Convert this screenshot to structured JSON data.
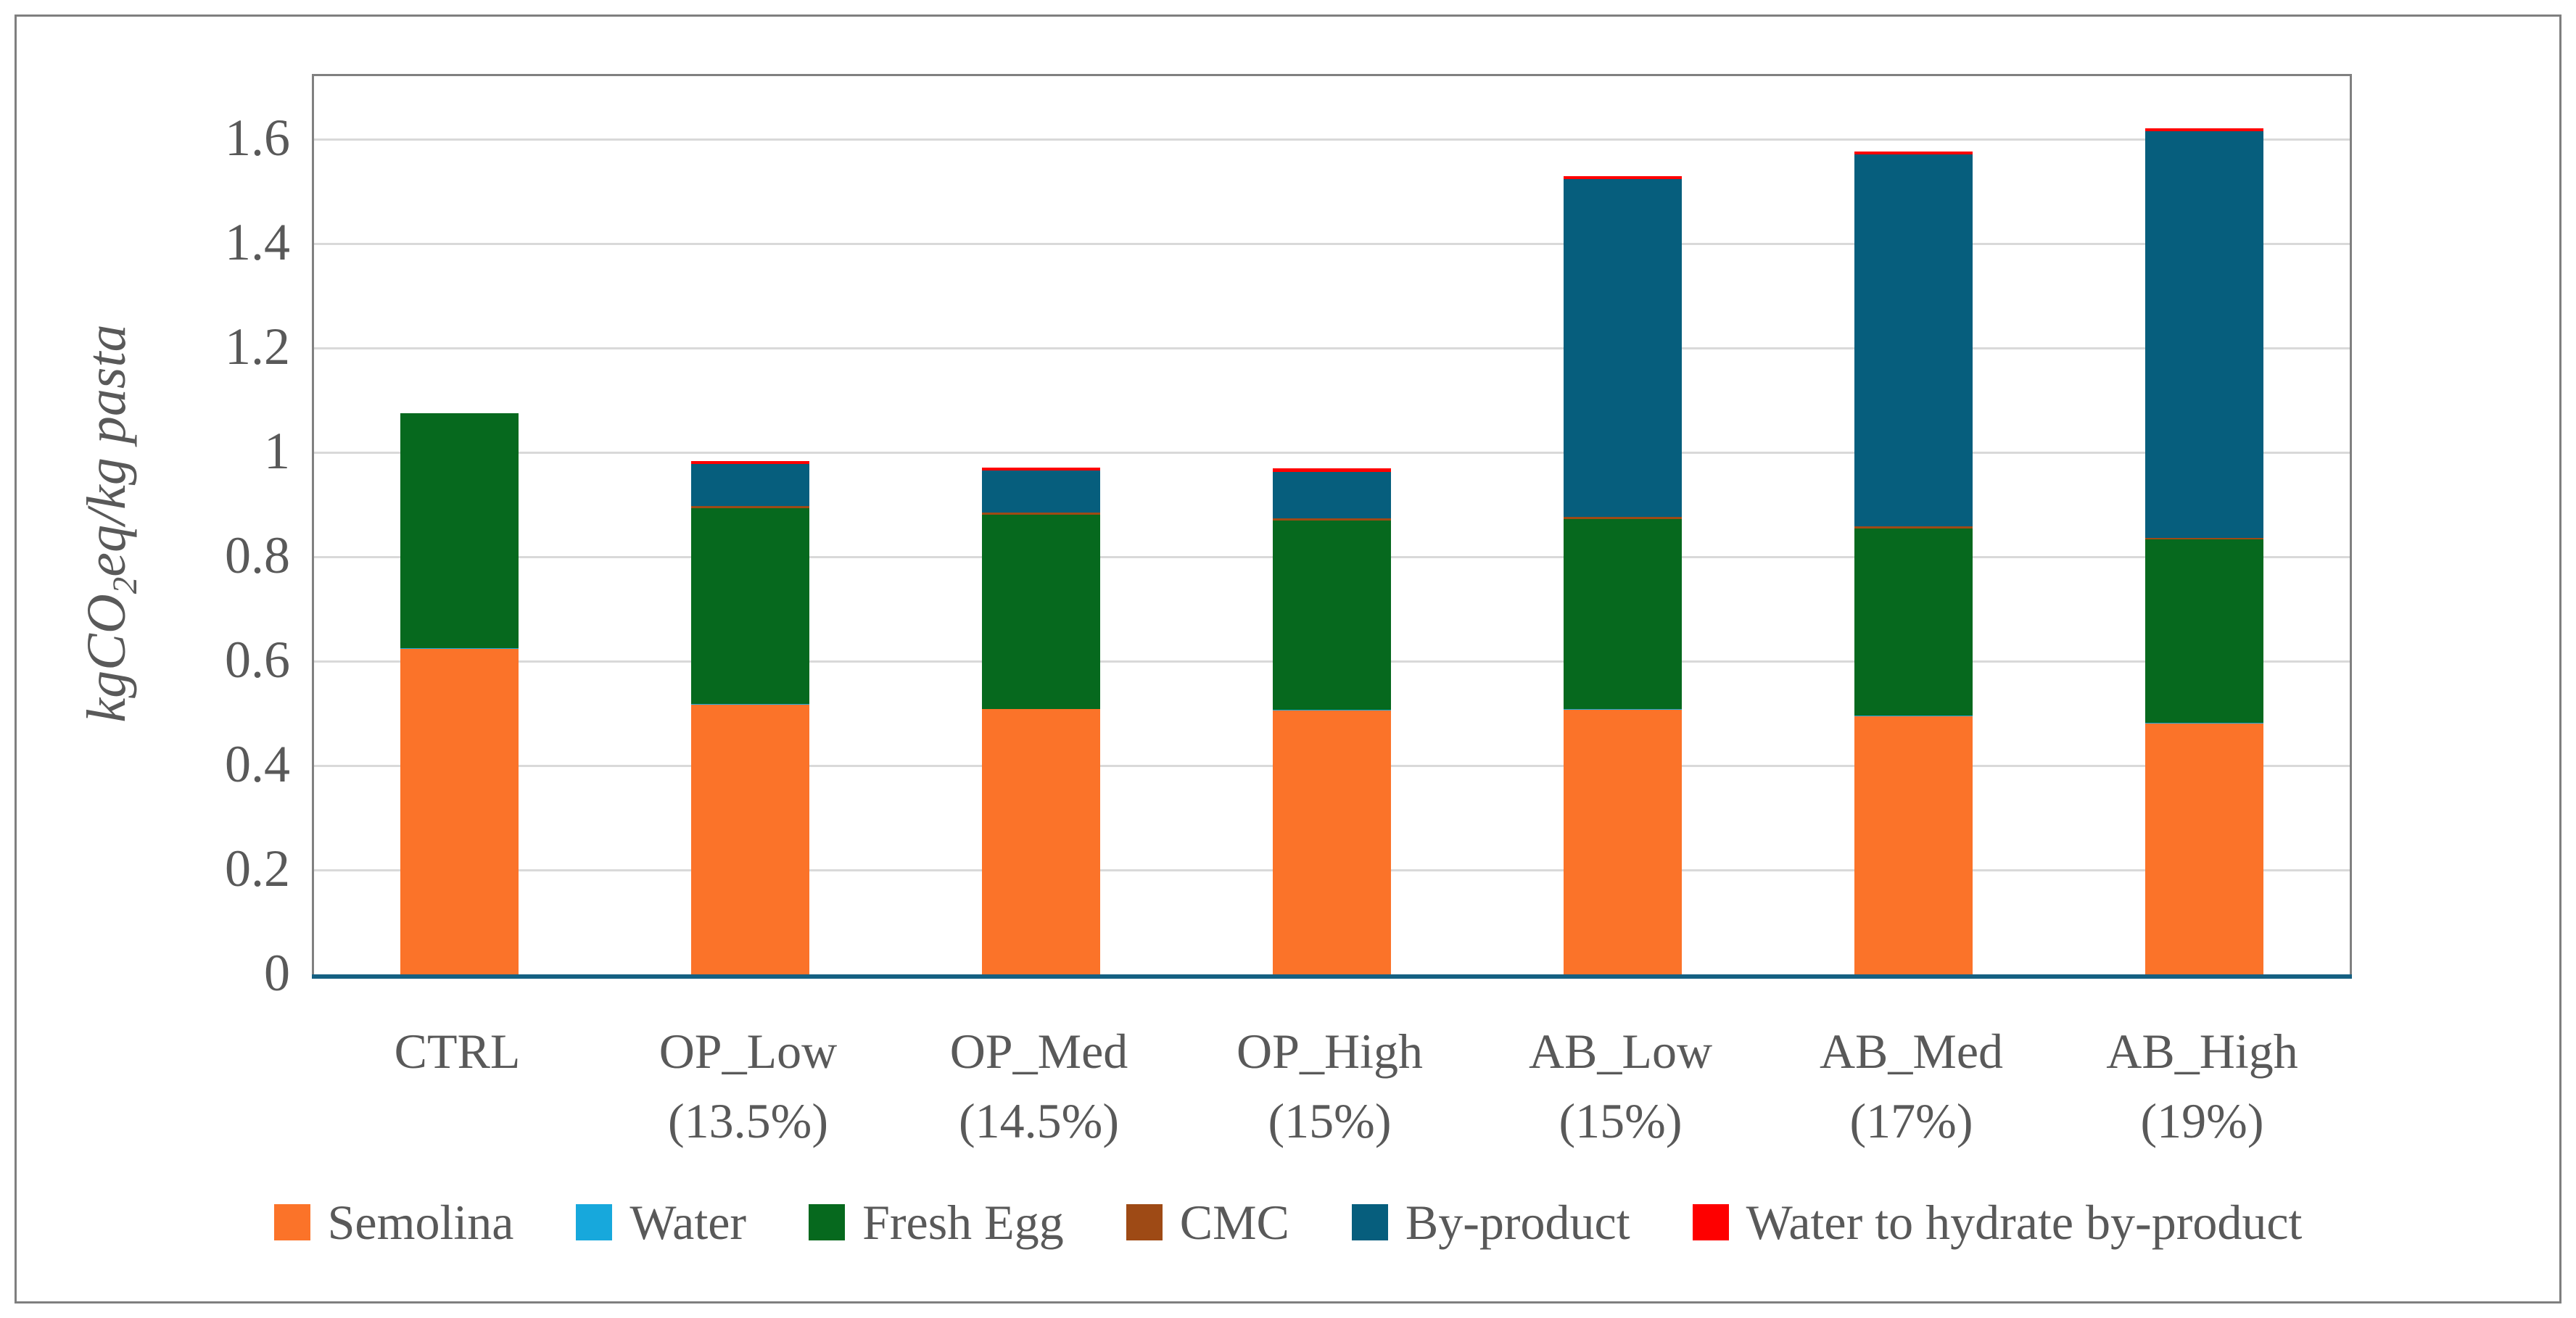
{
  "figure": {
    "background_color": "#ffffff",
    "border_color": "#7f7f7f"
  },
  "chart_data": {
    "type": "bar",
    "stacked": true,
    "title": "",
    "xlabel": "",
    "ylabel": "kgCO2eq/kg pasta",
    "ylabel_parts": {
      "pre": "kgCO",
      "sub": "2",
      "post": "eq/kg pasta"
    },
    "ylim": [
      0,
      1.722
    ],
    "y_ticks": [
      0,
      0.2,
      0.4,
      0.6,
      0.8,
      1.0,
      1.2,
      1.4,
      1.6
    ],
    "y_tick_labels": [
      "0",
      "0.2",
      "0.4",
      "0.6",
      "0.8",
      "1",
      "1.2",
      "1.4",
      "1.6"
    ],
    "grid": true,
    "legend_position": "bottom",
    "categories": [
      {
        "label": "CTRL",
        "sublabel": ""
      },
      {
        "label": "OP_Low",
        "sublabel": "(13.5%)"
      },
      {
        "label": "OP_Med",
        "sublabel": "(14.5%)"
      },
      {
        "label": "OP_High",
        "sublabel": "(15%)"
      },
      {
        "label": "AB_Low",
        "sublabel": "(15%)"
      },
      {
        "label": "AB_Med",
        "sublabel": "(17%)"
      },
      {
        "label": "AB_High",
        "sublabel": "(19%)"
      }
    ],
    "series": [
      {
        "name": "Semolina",
        "color": "#fb7329",
        "values": [
          0.625,
          0.518,
          0.509,
          0.507,
          0.508,
          0.496,
          0.482
        ]
      },
      {
        "name": "Water",
        "color": "#17a8dc",
        "values": [
          0.001,
          0.001,
          0.001,
          0.001,
          0.001,
          0.001,
          0.001
        ]
      },
      {
        "name": "Fresh Egg",
        "color": "#06691e",
        "values": [
          0.45,
          0.376,
          0.372,
          0.363,
          0.365,
          0.358,
          0.351
        ]
      },
      {
        "name": "CMC",
        "color": "#9e4a15",
        "values": [
          0,
          0.004,
          0.004,
          0.004,
          0.004,
          0.005,
          0.004
        ]
      },
      {
        "name": "By-product",
        "color": "#065e7d",
        "values": [
          0,
          0.08,
          0.08,
          0.089,
          0.647,
          0.712,
          0.778
        ]
      },
      {
        "name": "Water to hydrate by-product",
        "color": "#fe0000",
        "values": [
          0,
          0.006,
          0.006,
          0.007,
          0.006,
          0.006,
          0.006
        ]
      }
    ],
    "approx_totals": [
      1.075,
      0.985,
      0.972,
      0.971,
      1.531,
      1.578,
      1.622
    ],
    "style": {
      "axis_line_color": "#156082",
      "gridline_color": "#d9d9d9",
      "plot_border_color": "#808080",
      "text_color": "#595959"
    }
  }
}
